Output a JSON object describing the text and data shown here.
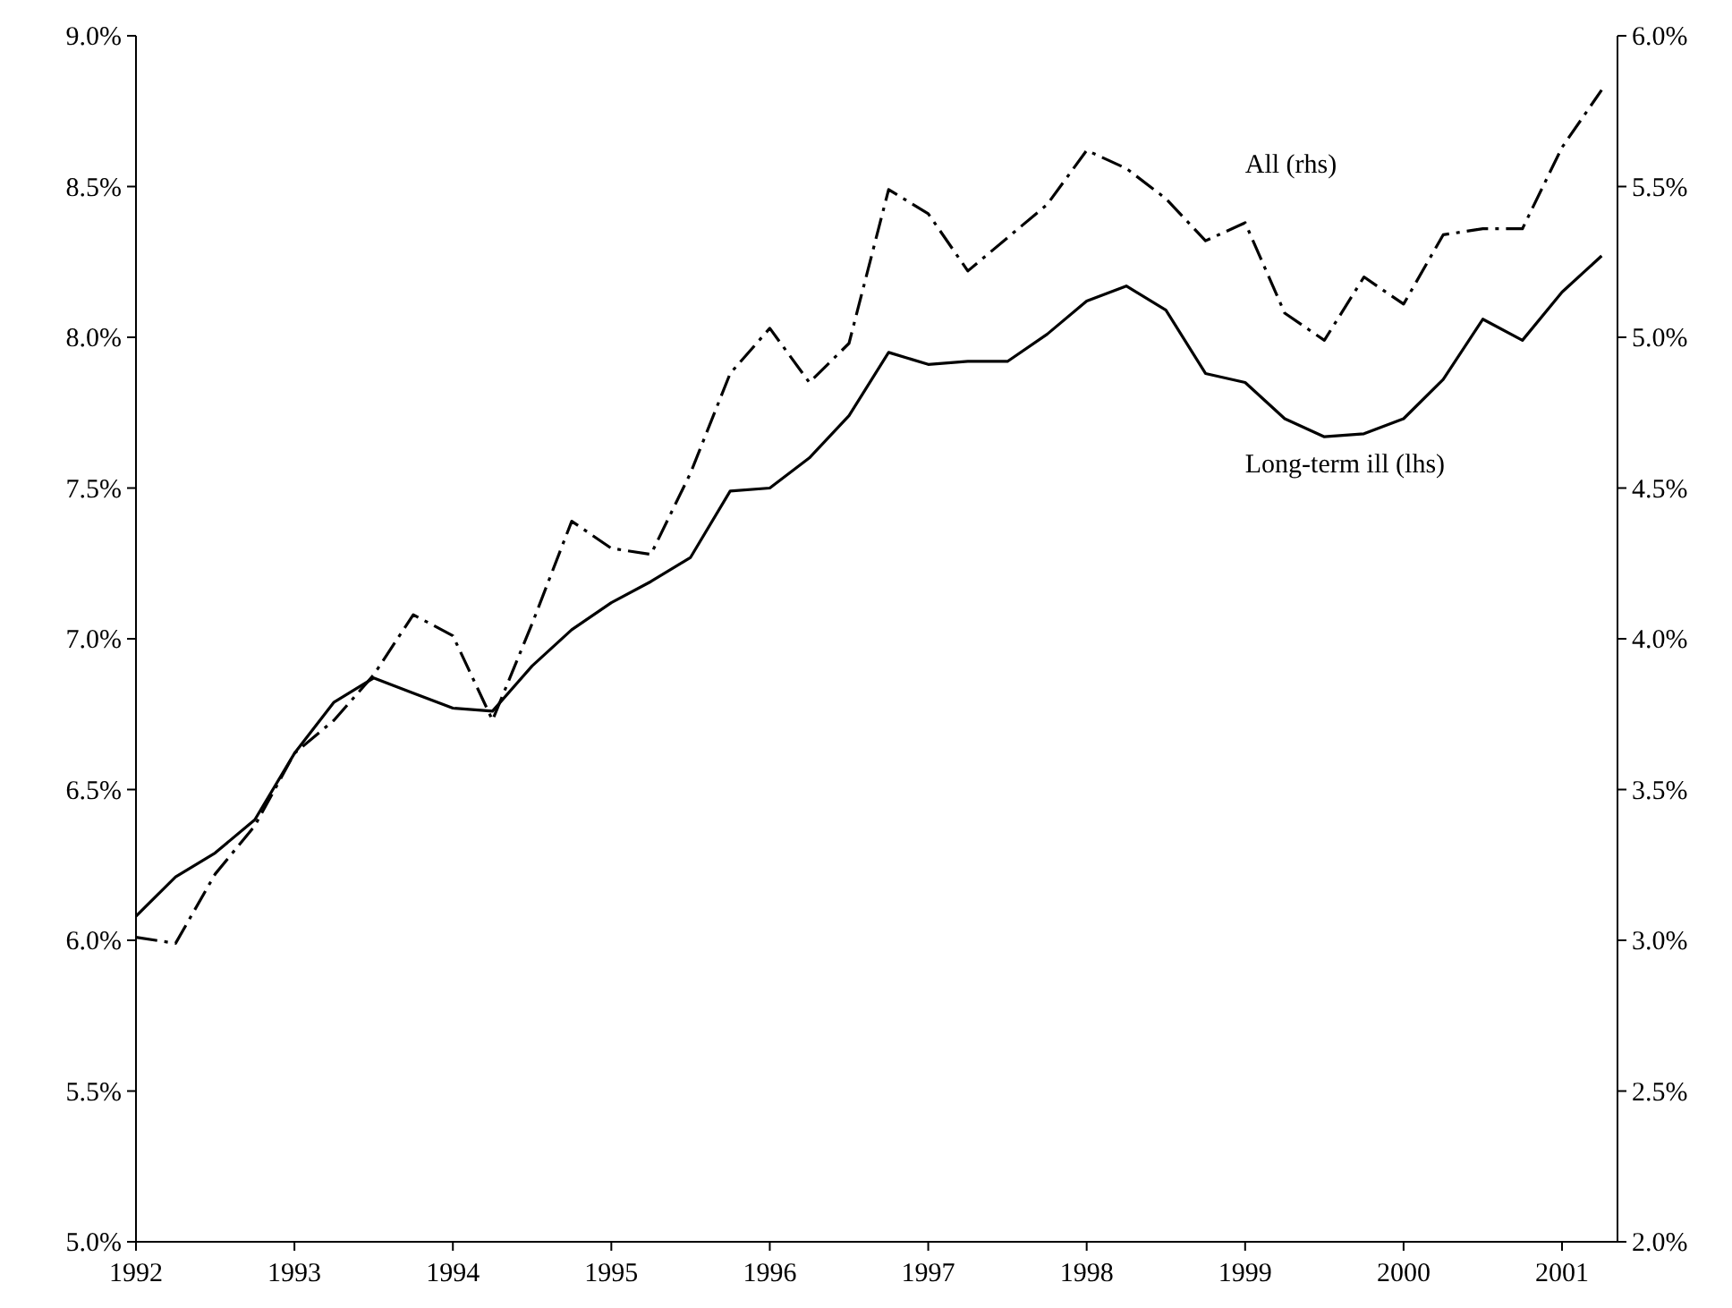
{
  "chart_data": {
    "type": "line",
    "x": [
      1992,
      1992.25,
      1992.5,
      1992.75,
      1993,
      1993.25,
      1993.5,
      1993.75,
      1994,
      1994.25,
      1994.5,
      1994.75,
      1995,
      1995.25,
      1995.5,
      1995.75,
      1996,
      1996.25,
      1996.5,
      1996.75,
      1997,
      1997.25,
      1997.5,
      1997.75,
      1998,
      1998.25,
      1998.5,
      1998.75,
      1999,
      1999.25,
      1999.5,
      1999.75,
      2000,
      2000.25,
      2000.5,
      2000.75,
      2001,
      2001.25
    ],
    "series": [
      {
        "name": "Long-term ill (lhs)",
        "color": "#000000",
        "line_style": "solid",
        "values": [
          6.08,
          6.21,
          6.29,
          6.4,
          6.62,
          6.79,
          6.87,
          6.82,
          6.77,
          6.76,
          6.91,
          7.03,
          7.12,
          7.19,
          7.27,
          7.49,
          7.5,
          7.6,
          7.74,
          7.95,
          7.91,
          7.92,
          7.92,
          8.01,
          8.12,
          8.17,
          8.09,
          7.88,
          7.85,
          7.73,
          7.67,
          7.68,
          7.73,
          7.86,
          8.06,
          7.99,
          8.15,
          8.27
        ]
      },
      {
        "name": "All (rhs)",
        "color": "#000000",
        "line_style": "dashed",
        "axis": "y2",
        "values": [
          3.01,
          2.99,
          3.22,
          3.38,
          3.62,
          3.73,
          3.88,
          4.08,
          4.01,
          3.73,
          4.05,
          4.39,
          4.3,
          4.28,
          4.55,
          4.88,
          5.03,
          4.85,
          4.98,
          5.49,
          5.41,
          5.22,
          5.33,
          5.44,
          5.62,
          5.56,
          5.46,
          5.32,
          5.38,
          5.08,
          4.99,
          5.2,
          5.11,
          5.34,
          5.36,
          5.36,
          5.63,
          5.82
        ]
      }
    ],
    "xlim": [
      1992,
      2001.35
    ],
    "xticks": [
      1992,
      1993,
      1994,
      1995,
      1996,
      1997,
      1998,
      1999,
      2000,
      2001
    ],
    "ylim": [
      5,
      9
    ],
    "yticks": [
      {
        "value": 5,
        "label": "5.0%"
      },
      {
        "value": 5.5,
        "label": "5.5%"
      },
      {
        "value": 6,
        "label": "6.0%"
      },
      {
        "value": 6.5,
        "label": "6.5%"
      },
      {
        "value": 7,
        "label": "7.0%"
      },
      {
        "value": 7.5,
        "label": "7.5%"
      },
      {
        "value": 8,
        "label": "8.0%"
      },
      {
        "value": 8.5,
        "label": "8.5%"
      },
      {
        "value": 9,
        "label": "9.0%"
      }
    ],
    "y2lim": [
      2,
      6
    ],
    "y2ticks": [
      {
        "value": 2,
        "label": "2.0%"
      },
      {
        "value": 2.5,
        "label": "2.5%"
      },
      {
        "value": 3,
        "label": "3.0%"
      },
      {
        "value": 3.5,
        "label": "3.5%"
      },
      {
        "value": 4,
        "label": "4.0%"
      },
      {
        "value": 4.5,
        "label": "4.5%"
      },
      {
        "value": 5,
        "label": "5.0%"
      },
      {
        "value": 5.5,
        "label": "5.5%"
      },
      {
        "value": 6,
        "label": "6.0%"
      }
    ],
    "grid": false,
    "marker": "none"
  }
}
